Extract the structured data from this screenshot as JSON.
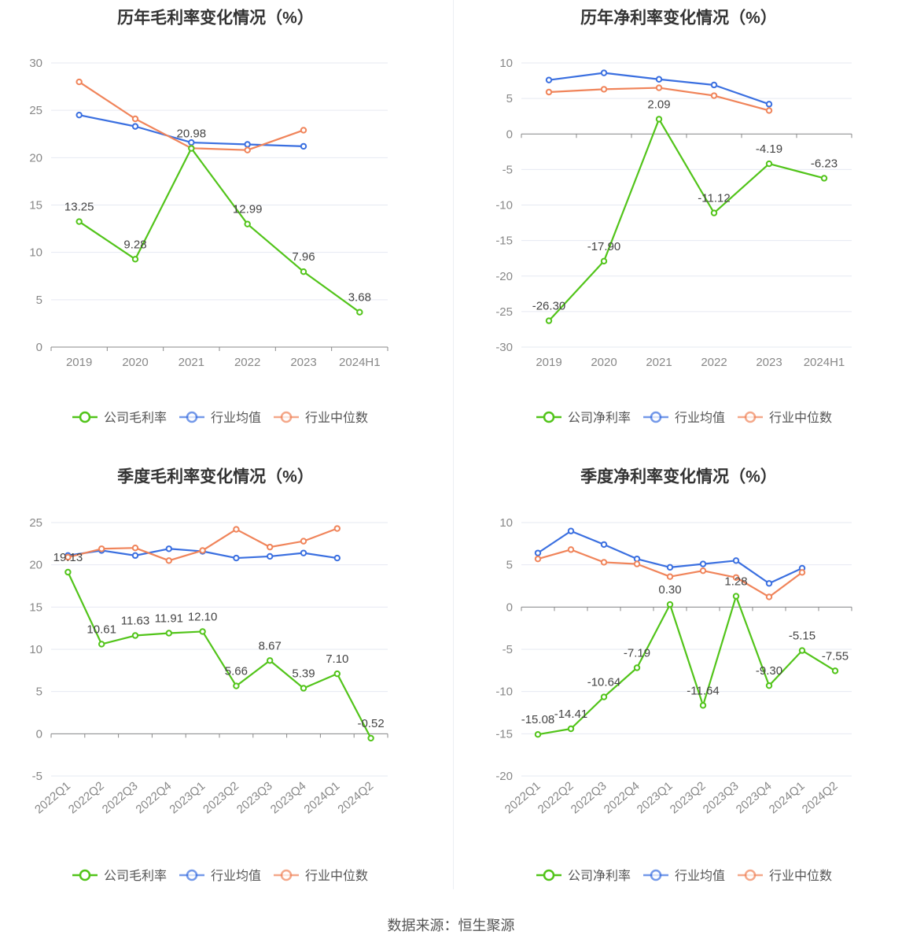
{
  "colors": {
    "company": "#52c41a",
    "industry_avg": "#3a6fe0",
    "industry_median": "#f0845a",
    "grid": "#e6e9f2",
    "axis": "#888888"
  },
  "source": {
    "label": "数据来源：恒生聚源"
  },
  "chart_data": [
    {
      "type": "line",
      "title": "历年毛利率变化情况（%）",
      "categories": [
        "2019",
        "2020",
        "2021",
        "2022",
        "2023",
        "2024H1"
      ],
      "ylim": [
        0,
        30
      ],
      "yticks": [
        0,
        5,
        10,
        15,
        20,
        25,
        30
      ],
      "ytick_labels": [
        "0",
        "5",
        "10",
        "15",
        "20",
        "25",
        "30"
      ],
      "grid": true,
      "legend_position": "bottom",
      "rotate_x_labels": false,
      "series": [
        {
          "name": "公司毛利率",
          "color": "#52c41a",
          "values": [
            13.25,
            9.28,
            20.98,
            12.99,
            7.96,
            3.68
          ],
          "labels": [
            "13.25",
            "9.28",
            "20.98",
            "12.99",
            "7.96",
            "3.68"
          ]
        },
        {
          "name": "行业均值",
          "color": "#3a6fe0",
          "values": [
            24.5,
            23.3,
            21.6,
            21.4,
            21.2,
            null
          ]
        },
        {
          "name": "行业中位数",
          "color": "#f0845a",
          "values": [
            28.0,
            24.1,
            21.0,
            20.8,
            22.9,
            null
          ]
        }
      ]
    },
    {
      "type": "line",
      "title": "历年净利率变化情况（%）",
      "categories": [
        "2019",
        "2020",
        "2021",
        "2022",
        "2023",
        "2024H1"
      ],
      "ylim": [
        -30,
        10
      ],
      "yticks": [
        -30,
        -25,
        -20,
        -15,
        -10,
        -5,
        0,
        5,
        10
      ],
      "ytick_labels": [
        "-30",
        "-25",
        "-20",
        "-15",
        "-10",
        "-5",
        "0",
        "5",
        "10"
      ],
      "grid": true,
      "legend_position": "bottom",
      "rotate_x_labels": false,
      "series": [
        {
          "name": "公司净利率",
          "color": "#52c41a",
          "values": [
            -26.3,
            -17.9,
            2.09,
            -11.12,
            -4.19,
            -6.23
          ],
          "labels": [
            "-26.30",
            "-17.90",
            "2.09",
            "-11.12",
            "-4.19",
            "-6.23"
          ]
        },
        {
          "name": "行业均值",
          "color": "#3a6fe0",
          "values": [
            7.6,
            8.6,
            7.7,
            6.9,
            4.2,
            null
          ]
        },
        {
          "name": "行业中位数",
          "color": "#f0845a",
          "values": [
            5.9,
            6.3,
            6.5,
            5.4,
            3.3,
            null
          ]
        }
      ]
    },
    {
      "type": "line",
      "title": "季度毛利率变化情况（%）",
      "categories": [
        "2022Q1",
        "2022Q2",
        "2022Q3",
        "2022Q4",
        "2023Q1",
        "2023Q2",
        "2023Q3",
        "2023Q4",
        "2024Q1",
        "2024Q2"
      ],
      "ylim": [
        -5,
        25
      ],
      "yticks": [
        -5,
        0,
        5,
        10,
        15,
        20,
        25
      ],
      "ytick_labels": [
        "-5",
        "0",
        "5",
        "10",
        "15",
        "20",
        "25"
      ],
      "grid": true,
      "legend_position": "bottom",
      "rotate_x_labels": true,
      "series": [
        {
          "name": "公司毛利率",
          "color": "#52c41a",
          "values": [
            19.13,
            10.61,
            11.63,
            11.91,
            12.1,
            5.66,
            8.67,
            5.39,
            7.1,
            -0.52
          ],
          "labels": [
            "19.13",
            "10.61",
            "11.63",
            "11.91",
            "12.10",
            "5.66",
            "8.67",
            "5.39",
            "7.10",
            "-0.52"
          ]
        },
        {
          "name": "行业均值",
          "color": "#3a6fe0",
          "values": [
            21.1,
            21.7,
            21.1,
            21.9,
            21.6,
            20.8,
            21.0,
            21.4,
            20.8,
            null
          ]
        },
        {
          "name": "行业中位数",
          "color": "#f0845a",
          "values": [
            20.9,
            21.9,
            22.0,
            20.5,
            21.7,
            24.2,
            22.1,
            22.8,
            24.3,
            null
          ]
        }
      ]
    },
    {
      "type": "line",
      "title": "季度净利率变化情况（%）",
      "categories": [
        "2022Q1",
        "2022Q2",
        "2022Q3",
        "2022Q4",
        "2023Q1",
        "2023Q2",
        "2023Q3",
        "2023Q4",
        "2024Q1",
        "2024Q2"
      ],
      "ylim": [
        -20,
        10
      ],
      "yticks": [
        -20,
        -15,
        -10,
        -5,
        0,
        5,
        10
      ],
      "ytick_labels": [
        "-20",
        "-15",
        "-10",
        "-5",
        "0",
        "5",
        "10"
      ],
      "grid": true,
      "legend_position": "bottom",
      "rotate_x_labels": true,
      "series": [
        {
          "name": "公司净利率",
          "color": "#52c41a",
          "values": [
            -15.08,
            -14.41,
            -10.64,
            -7.19,
            0.3,
            -11.64,
            1.28,
            -9.3,
            -5.15,
            -7.55
          ],
          "labels": [
            "-15.08",
            "-14.41",
            "-10.64",
            "-7.19",
            "0.30",
            "-11.64",
            "1.28",
            "-9.30",
            "-5.15",
            "-7.55"
          ]
        },
        {
          "name": "行业均值",
          "color": "#3a6fe0",
          "values": [
            6.4,
            9.0,
            7.4,
            5.7,
            4.7,
            5.1,
            5.5,
            2.8,
            4.6,
            null
          ]
        },
        {
          "name": "行业中位数",
          "color": "#f0845a",
          "values": [
            5.7,
            6.8,
            5.3,
            5.1,
            3.6,
            4.3,
            3.5,
            1.2,
            4.1,
            null
          ]
        }
      ]
    }
  ]
}
